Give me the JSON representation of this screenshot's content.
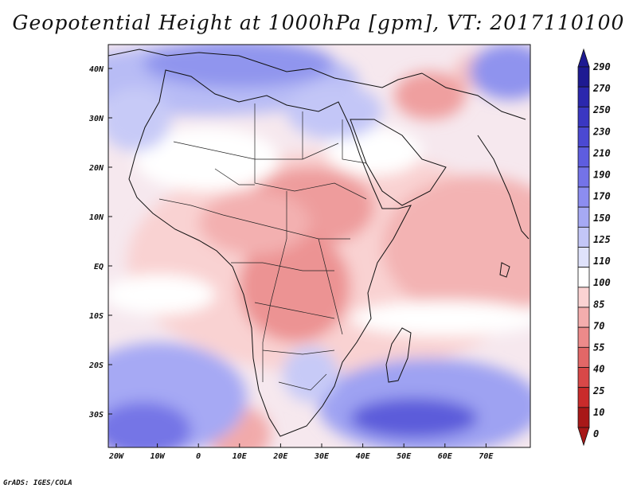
{
  "title": "Geopotential Height at 1000hPa [gpm], VT: 2017110100",
  "credit": "GrADS: IGES/COLA",
  "lat_labels": [
    "40N",
    "30N",
    "20N",
    "10N",
    "EQ",
    "10S",
    "20S",
    "30S"
  ],
  "lon_labels": [
    "20W",
    "10W",
    "0",
    "10E",
    "20E",
    "30E",
    "40E",
    "50E",
    "60E",
    "70E"
  ],
  "colorbar": {
    "labels": [
      "290",
      "270",
      "250",
      "230",
      "210",
      "190",
      "170",
      "150",
      "125",
      "110",
      "100",
      "85",
      "70",
      "55",
      "40",
      "25",
      "10",
      "0"
    ],
    "colors": [
      "#1e1a92",
      "#2b27ad",
      "#3a37c2",
      "#4b49d2",
      "#5e5ddf",
      "#7473e8",
      "#8c8df0",
      "#a6a9f4",
      "#c3c6f7",
      "#dfe2fb",
      "#ffffff",
      "#fbd3d3",
      "#f4adad",
      "#ec8a8a",
      "#e26767",
      "#d84848",
      "#c92b2b",
      "#a81818"
    ]
  },
  "chart_data": {
    "type": "heatmap",
    "title": "Geopotential Height at 1000hPa [gpm], VT: 2017110100",
    "variable": "Geopotential Height",
    "level": "1000hPa",
    "units": "gpm",
    "valid_time": "2017110100",
    "region": "Africa",
    "lon_range": [
      -22,
      80
    ],
    "lat_range": [
      -37,
      45
    ],
    "contour_levels": [
      0,
      10,
      25,
      40,
      55,
      70,
      85,
      100,
      110,
      125,
      150,
      170,
      190,
      210,
      230,
      250,
      270,
      290
    ]
  }
}
